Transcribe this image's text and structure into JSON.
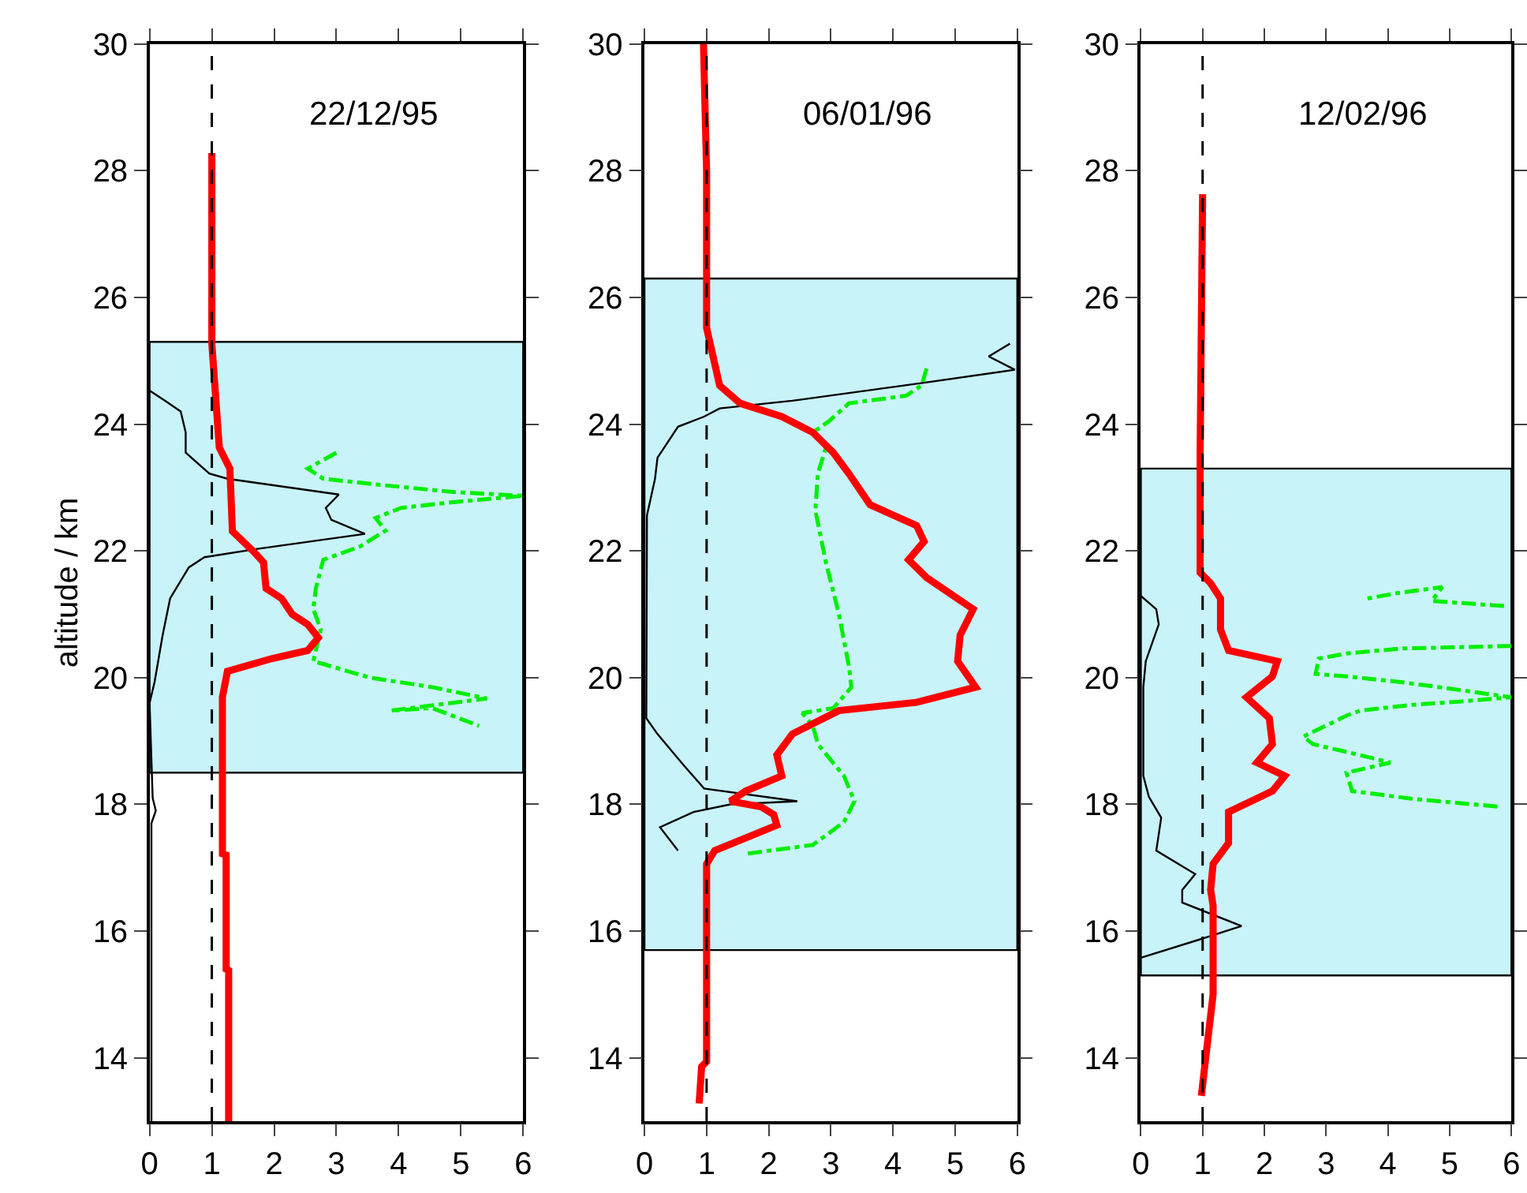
{
  "chart_data": [
    {
      "type": "line",
      "title": "22/12/95",
      "ylabel": "altitude / km",
      "xlim": [
        0,
        6
      ],
      "xticks": [
        0,
        1,
        2,
        3,
        4,
        5,
        6
      ],
      "ylim": [
        13,
        30
      ],
      "yticks": [
        14,
        16,
        18,
        20,
        22,
        24,
        26,
        28,
        30
      ],
      "ref_lines": [
        {
          "axis": "x",
          "value": 1,
          "color": "#000000",
          "line_style": "dashed"
        }
      ],
      "bands": [
        {
          "axis": "y",
          "from": 18.5,
          "to": 25.3,
          "color": "#c8f3f8"
        }
      ],
      "series": [
        {
          "color": "#00ee00",
          "line_style": "dashed",
          "x": [
            3.0,
            2.54,
            2.79,
            3.63,
            4.88,
            6.0,
            4.88,
            4.04,
            3.63,
            3.79,
            3.38,
            2.79,
            2.67,
            2.63,
            2.75,
            2.63,
            3.54,
            4.54,
            5.42,
            3.88,
            4.54,
            5.29
          ],
          "values": [
            23.55,
            23.3,
            23.14,
            23.05,
            22.93,
            22.87,
            22.77,
            22.68,
            22.52,
            22.32,
            22.07,
            21.86,
            21.41,
            21.08,
            20.76,
            20.26,
            20.0,
            19.85,
            19.67,
            19.48,
            19.52,
            19.24
          ]
        },
        {
          "color": "#000000",
          "line_style": "solid",
          "x": [
            0,
            0.25,
            0.5,
            0.58,
            0.58,
            0.96,
            1.25,
            3.04,
            2.83,
            2.92,
            3.46,
            1.71,
            0.88,
            0.63,
            0.33,
            0.21,
            0.08,
            0,
            0.05,
            0.1,
            0.03,
            0.03
          ],
          "values": [
            24.53,
            24.37,
            24.2,
            23.87,
            23.55,
            23.22,
            23.14,
            22.89,
            22.68,
            22.49,
            22.27,
            22.03,
            21.9,
            21.74,
            21.25,
            20.67,
            19.93,
            19.6,
            18.1,
            17.9,
            17.7,
            13
          ]
        },
        {
          "color": "#ff0000",
          "line_style": "solid",
          "x": [
            1.0,
            1.0,
            1.0,
            1.12,
            1.29,
            1.33,
            1.67,
            1.83,
            1.87,
            2.12,
            2.29,
            2.54,
            2.71,
            2.54,
            1.96,
            1.25,
            1.17,
            1.17,
            1.23,
            1.23,
            1.27,
            1.27
          ],
          "values": [
            28.28,
            26.0,
            25.27,
            23.63,
            23.3,
            22.31,
            21.99,
            21.82,
            21.41,
            21.25,
            21.0,
            20.84,
            20.63,
            20.43,
            20.3,
            20.1,
            19.69,
            17.22,
            17.2,
            15.4,
            15.38,
            13.0
          ]
        }
      ]
    },
    {
      "type": "line",
      "title": "06/01/96",
      "xlim": [
        0,
        6
      ],
      "xticks": [
        0,
        1,
        2,
        3,
        4,
        5,
        6
      ],
      "ylim": [
        13,
        30
      ],
      "yticks": [
        14,
        16,
        18,
        20,
        22,
        24,
        26,
        28,
        30
      ],
      "ref_lines": [
        {
          "axis": "x",
          "value": 1,
          "color": "#000000",
          "line_style": "dashed"
        }
      ],
      "bands": [
        {
          "axis": "y",
          "from": 15.7,
          "to": 26.3,
          "color": "#c8f3f8"
        }
      ],
      "series": [
        {
          "color": "#00ee00",
          "line_style": "dashed",
          "x": [
            4.54,
            4.46,
            4.21,
            3.29,
            2.96,
            2.71,
            2.92,
            2.79,
            2.75,
            2.92,
            3.13,
            3.29,
            3.33,
            3.04,
            2.54,
            2.71,
            2.79,
            3.21,
            3.38,
            3.21,
            2.71,
            1.63
          ],
          "values": [
            24.88,
            24.61,
            24.45,
            24.33,
            24.04,
            23.87,
            23.63,
            23.22,
            22.64,
            21.82,
            21.0,
            20.18,
            19.85,
            19.52,
            19.44,
            19.24,
            18.95,
            18.45,
            18.05,
            17.72,
            17.36,
            17.22
          ]
        },
        {
          "color": "#000000",
          "line_style": "solid",
          "x": [
            5.88,
            5.54,
            5.96,
            4.54,
            2.38,
            1.21,
            0.96,
            0.54,
            0.21,
            0.17,
            0.04,
            0.03,
            0.21,
            0.63,
            0.96,
            2.46,
            1.38,
            0.79,
            0.25,
            0.54
          ],
          "values": [
            25.27,
            25.07,
            24.86,
            24.66,
            24.37,
            24.25,
            24.12,
            23.96,
            23.47,
            23.14,
            22.56,
            19.36,
            19.11,
            18.62,
            18.25,
            18.05,
            18.0,
            17.88,
            17.64,
            17.27
          ]
        },
        {
          "color": "#ff0000",
          "line_style": "solid",
          "x": [
            0.95,
            1.0,
            1.0,
            1.0,
            1.21,
            1.54,
            2.21,
            2.71,
            3.04,
            3.29,
            3.63,
            4.38,
            4.5,
            4.25,
            4.54,
            5.29,
            5.08,
            5.04,
            5.33,
            4.38,
            3.13,
            2.38,
            2.13,
            2.21,
            1.63,
            1.38,
            1.88,
            2.08,
            2.13,
            1.13,
            1.0,
            1.0,
            0.92,
            0.88
          ],
          "values": [
            30.0,
            28.0,
            26.75,
            25.52,
            24.61,
            24.33,
            24.12,
            23.87,
            23.55,
            23.22,
            22.73,
            22.4,
            22.15,
            21.86,
            21.58,
            21.08,
            20.67,
            20.26,
            19.85,
            19.61,
            19.48,
            19.11,
            18.78,
            18.45,
            18.21,
            18.05,
            17.96,
            17.84,
            17.67,
            17.27,
            17.06,
            13.94,
            13.86,
            13.28
          ]
        }
      ]
    },
    {
      "type": "line",
      "title": "12/02/96",
      "xlim": [
        0,
        6
      ],
      "xticks": [
        0,
        1,
        2,
        3,
        4,
        5,
        6
      ],
      "ylim": [
        13,
        30
      ],
      "yticks": [
        14,
        16,
        18,
        20,
        22,
        24,
        26,
        28,
        30
      ],
      "ref_lines": [
        {
          "axis": "x",
          "value": 1,
          "color": "#000000",
          "line_style": "dashed"
        }
      ],
      "bands": [
        {
          "axis": "y",
          "from": 15.3,
          "to": 23.3,
          "color": "#c8f3f8"
        }
      ],
      "series": [
        {
          "color": "#00ee00",
          "line_style": "dashed",
          "x": [
            5.88,
            4.71,
            4.88,
            4.13,
            3.67,
            null,
            6.0,
            4.21,
            3.33,
            2.88,
            2.83,
            3.33,
            4.21,
            5.13,
            6.0,
            5.13,
            4.38,
            3.55,
            3.33,
            2.63,
            2.79,
            3.54,
            4.04,
            3.33,
            3.42,
            4.38,
            5.83
          ],
          "values": [
            21.13,
            21.21,
            21.43,
            21.33,
            21.25,
            null,
            20.5,
            20.46,
            20.38,
            20.3,
            20.06,
            20.02,
            19.93,
            19.81,
            19.69,
            19.62,
            19.57,
            19.48,
            19.4,
            19.07,
            18.95,
            18.78,
            18.66,
            18.5,
            18.21,
            18.09,
            17.96
          ]
        },
        {
          "color": "#000000",
          "line_style": "solid",
          "x": [
            0,
            0.25,
            0.29,
            0.08,
            0.04,
            0.04,
            0.13,
            0.33,
            0.25,
            0.88,
            0.67,
            0.67,
            1.63,
            0.96,
            0
          ],
          "values": [
            21.29,
            21.08,
            20.84,
            20.26,
            19.85,
            18.45,
            18.12,
            17.79,
            17.27,
            16.9,
            16.65,
            16.45,
            16.08,
            15.87,
            15.58
          ]
        },
        {
          "color": "#ff0000",
          "line_style": "solid",
          "x": [
            1.0,
            0.96,
            0.96,
            1.13,
            1.29,
            1.29,
            1.42,
            2.21,
            2.13,
            1.71,
            2.08,
            2.13,
            1.88,
            2.33,
            2.13,
            1.42,
            1.42,
            1.17,
            1.13,
            1.17,
            1.17,
            1.05,
            0.98
          ],
          "values": [
            27.63,
            23.55,
            21.66,
            21.49,
            21.25,
            20.76,
            20.43,
            20.26,
            20.02,
            19.69,
            19.36,
            18.95,
            18.66,
            18.45,
            18.21,
            17.88,
            17.39,
            17.06,
            16.65,
            16.4,
            15.0,
            14.0,
            13.4
          ]
        }
      ]
    }
  ]
}
